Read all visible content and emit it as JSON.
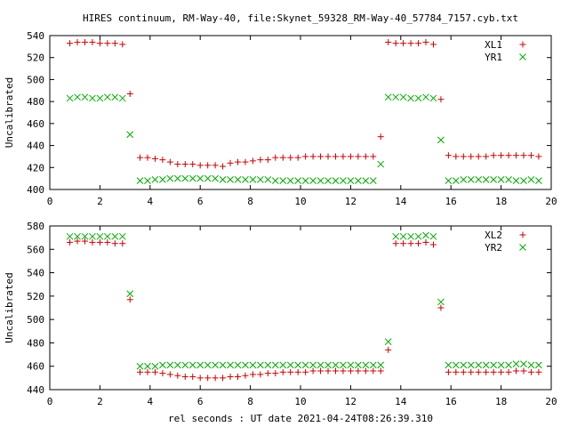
{
  "chart_data": {
    "title": "HIRES continuum, RM-Way-40, file:Skynet_59328_RM-Way-40_57784_7157.cyb.txt",
    "xlabel": "rel seconds : UT date 2021-04-24T08:26:39.310",
    "panels": [
      {
        "type": "scatter",
        "ylabel": "Uncalibrated",
        "xlim": [
          0,
          20
        ],
        "ylim": [
          400,
          540
        ],
        "xticks": [
          0,
          2,
          4,
          6,
          8,
          10,
          12,
          14,
          16,
          18,
          20
        ],
        "yticks": [
          400,
          420,
          440,
          460,
          480,
          500,
          520,
          540
        ],
        "legend_position": "top-right",
        "series": [
          {
            "name": "XL1",
            "color": "#cc0000",
            "marker": "plus",
            "x": [
              0.8,
              1.1,
              1.4,
              1.7,
              2.0,
              2.3,
              2.6,
              2.9,
              3.2,
              3.6,
              3.9,
              4.2,
              4.5,
              4.8,
              5.1,
              5.4,
              5.7,
              6.0,
              6.3,
              6.6,
              6.9,
              7.2,
              7.5,
              7.8,
              8.1,
              8.4,
              8.7,
              9.0,
              9.3,
              9.6,
              9.9,
              10.2,
              10.5,
              10.8,
              11.1,
              11.4,
              11.7,
              12.0,
              12.3,
              12.6,
              12.9,
              13.2,
              13.5,
              13.8,
              14.1,
              14.4,
              14.7,
              15.0,
              15.3,
              15.6,
              15.9,
              16.2,
              16.5,
              16.8,
              17.1,
              17.4,
              17.7,
              18.0,
              18.3,
              18.6,
              18.9,
              19.2,
              19.5
            ],
            "y": [
              533,
              534,
              534,
              534,
              533,
              533,
              533,
              532,
              487,
              429,
              429,
              428,
              427,
              425,
              423,
              423,
              423,
              422,
              422,
              422,
              421,
              424,
              425,
              425,
              426,
              427,
              427,
              429,
              429,
              429,
              429,
              430,
              430,
              430,
              430,
              430,
              430,
              430,
              430,
              430,
              430,
              448,
              534,
              533,
              533,
              533,
              533,
              534,
              532,
              482,
              431,
              430,
              430,
              430,
              430,
              430,
              431,
              431,
              431,
              431,
              431,
              431,
              430
            ],
            "y_note": ""
          },
          {
            "name": "YR1",
            "color": "#00aa00",
            "marker": "cross",
            "x": [
              0.8,
              1.1,
              1.4,
              1.7,
              2.0,
              2.3,
              2.6,
              2.9,
              3.2,
              3.6,
              3.9,
              4.2,
              4.5,
              4.8,
              5.1,
              5.4,
              5.7,
              6.0,
              6.3,
              6.6,
              6.9,
              7.2,
              7.5,
              7.8,
              8.1,
              8.4,
              8.7,
              9.0,
              9.3,
              9.6,
              9.9,
              10.2,
              10.5,
              10.8,
              11.1,
              11.4,
              11.7,
              12.0,
              12.3,
              12.6,
              12.9,
              13.2,
              13.5,
              13.8,
              14.1,
              14.4,
              14.7,
              15.0,
              15.3,
              15.6,
              15.9,
              16.2,
              16.5,
              16.8,
              17.1,
              17.4,
              17.7,
              18.0,
              18.3,
              18.6,
              18.9,
              19.2,
              19.5
            ],
            "y": [
              483,
              484,
              484,
              483,
              483,
              484,
              484,
              483,
              450,
              408,
              408,
              409,
              409,
              410,
              410,
              410,
              410,
              410,
              410,
              410,
              409,
              409,
              409,
              409,
              409,
              409,
              409,
              408,
              408,
              408,
              408,
              408,
              408,
              408,
              408,
              408,
              408,
              408,
              408,
              408,
              408,
              423,
              484,
              484,
              484,
              483,
              483,
              484,
              483,
              445,
              408,
              408,
              409,
              409,
              409,
              409,
              409,
              409,
              409,
              408,
              408,
              409,
              408
            ]
          }
        ]
      },
      {
        "type": "scatter",
        "ylabel": "Uncalibrated",
        "xlim": [
          0,
          20
        ],
        "ylim": [
          440,
          580
        ],
        "xticks": [
          0,
          2,
          4,
          6,
          8,
          10,
          12,
          14,
          16,
          18,
          20
        ],
        "yticks": [
          440,
          460,
          480,
          500,
          520,
          540,
          560,
          580
        ],
        "legend_position": "top-right",
        "series": [
          {
            "name": "XL2",
            "color": "#cc0000",
            "marker": "plus",
            "x": [
              0.8,
              1.1,
              1.4,
              1.7,
              2.0,
              2.3,
              2.6,
              2.9,
              3.2,
              3.6,
              3.9,
              4.2,
              4.5,
              4.8,
              5.1,
              5.4,
              5.7,
              6.0,
              6.3,
              6.6,
              6.9,
              7.2,
              7.5,
              7.8,
              8.1,
              8.4,
              8.7,
              9.0,
              9.3,
              9.6,
              9.9,
              10.2,
              10.5,
              10.8,
              11.1,
              11.4,
              11.7,
              12.0,
              12.3,
              12.6,
              12.9,
              13.2,
              13.5,
              13.8,
              14.1,
              14.4,
              14.7,
              15.0,
              15.3,
              15.6,
              15.9,
              16.2,
              16.5,
              16.8,
              17.1,
              17.4,
              17.7,
              18.0,
              18.3,
              18.6,
              18.9,
              19.2,
              19.5
            ],
            "y": [
              566,
              567,
              567,
              566,
              566,
              566,
              565,
              565,
              517,
              455,
              455,
              455,
              454,
              453,
              452,
              451,
              451,
              450,
              450,
              450,
              450,
              451,
              451,
              452,
              453,
              453,
              454,
              454,
              455,
              455,
              455,
              455,
              456,
              456,
              456,
              456,
              456,
              456,
              456,
              456,
              456,
              456,
              474,
              565,
              565,
              565,
              565,
              566,
              564,
              510,
              455,
              455,
              455,
              455,
              455,
              455,
              455,
              455,
              455,
              456,
              456,
              455,
              455
            ]
          },
          {
            "name": "YR2",
            "color": "#00aa00",
            "marker": "cross",
            "x": [
              0.8,
              1.1,
              1.4,
              1.7,
              2.0,
              2.3,
              2.6,
              2.9,
              3.2,
              3.6,
              3.9,
              4.2,
              4.5,
              4.8,
              5.1,
              5.4,
              5.7,
              6.0,
              6.3,
              6.6,
              6.9,
              7.2,
              7.5,
              7.8,
              8.1,
              8.4,
              8.7,
              9.0,
              9.3,
              9.6,
              9.9,
              10.2,
              10.5,
              10.8,
              11.1,
              11.4,
              11.7,
              12.0,
              12.3,
              12.6,
              12.9,
              13.2,
              13.5,
              13.8,
              14.1,
              14.4,
              14.7,
              15.0,
              15.3,
              15.6,
              15.9,
              16.2,
              16.5,
              16.8,
              17.1,
              17.4,
              17.7,
              18.0,
              18.3,
              18.6,
              18.9,
              19.2,
              19.5
            ],
            "y": [
              571,
              571,
              571,
              571,
              571,
              571,
              571,
              571,
              522,
              460,
              460,
              460,
              461,
              461,
              461,
              461,
              461,
              461,
              461,
              461,
              461,
              461,
              461,
              461,
              461,
              461,
              461,
              461,
              461,
              461,
              461,
              461,
              461,
              461,
              461,
              461,
              461,
              461,
              461,
              461,
              461,
              461,
              481,
              571,
              571,
              571,
              571,
              572,
              571,
              515,
              461,
              461,
              461,
              461,
              461,
              461,
              461,
              461,
              461,
              462,
              462,
              461,
              461
            ]
          }
        ]
      }
    ]
  }
}
